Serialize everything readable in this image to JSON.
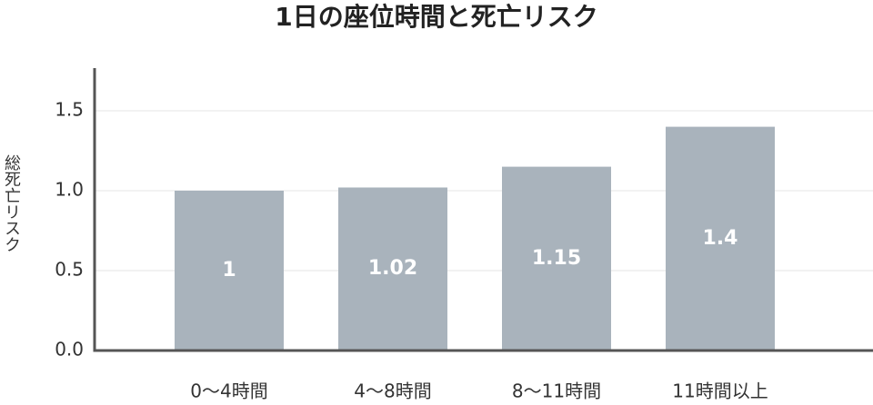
{
  "chart_data": {
    "type": "bar",
    "title": "1日の座位時間と死亡リスク",
    "y_label": "総死亡リスク",
    "categories": [
      "0〜4時間",
      "4〜8時間",
      "8〜11時間",
      "11時間以上"
    ],
    "values": [
      1,
      1.02,
      1.15,
      1.4
    ],
    "color": "#a9b3bc",
    "ylim": [
      0,
      1.75
    ],
    "yticks": [
      {
        "value": 0,
        "label": "0.0"
      },
      0.5,
      {
        "value": 1,
        "label": "1.0"
      },
      1.5
    ],
    "grid": true
  }
}
